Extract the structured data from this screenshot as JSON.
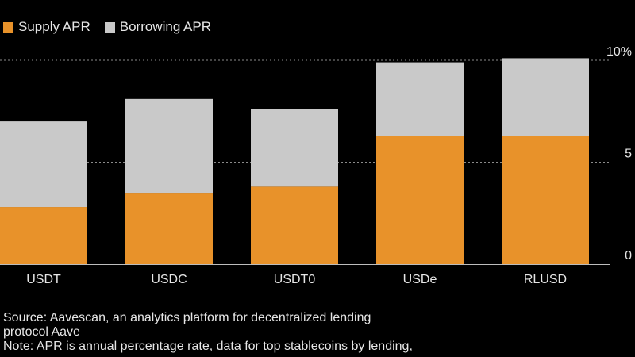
{
  "legend": {
    "supply_label": "Supply APR",
    "borrow_label": "Borrowing APR"
  },
  "colors": {
    "background": "#000000",
    "supply": "#e8922a",
    "borrow": "#c9c9c9",
    "text": "#e6e6e6",
    "gridline": "#8a8a8a"
  },
  "chart_data": {
    "type": "bar",
    "stacked": true,
    "categories": [
      "USDT",
      "USDC",
      "USDT0",
      "USDe",
      "RLUSD"
    ],
    "series": [
      {
        "name": "Supply APR",
        "values": [
          2.8,
          3.5,
          3.8,
          6.3,
          6.3
        ]
      },
      {
        "name": "Borrowing APR",
        "values": [
          4.2,
          4.6,
          3.8,
          3.6,
          3.8
        ]
      }
    ],
    "yticks": [
      0,
      5,
      10
    ],
    "ytick_labels": [
      "0",
      "5",
      "10%"
    ],
    "ylim": [
      0,
      10
    ],
    "grid": true,
    "legend_position": "top-left"
  },
  "notes": {
    "source_line1": "Source: Aavescan, an analytics platform for decentralized lending",
    "source_line2": "protocol Aave",
    "note_line1": "Note: APR is annual percentage rate, data for top stablecoins by lending,"
  }
}
